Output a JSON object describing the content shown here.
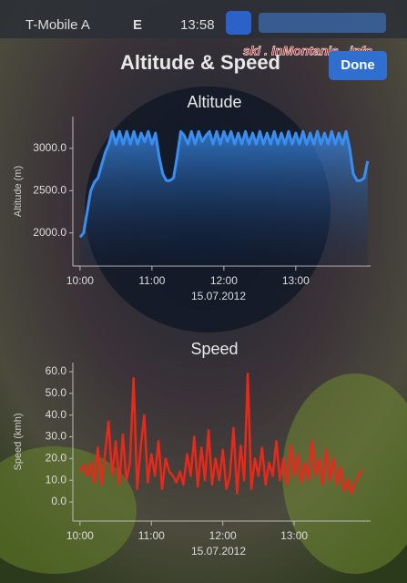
{
  "status_bar": {
    "carrier": "T-Mobile A",
    "network": "E",
    "time": "13:58"
  },
  "nav_bar": {
    "title": "Altitude & Speed",
    "button": "Done"
  },
  "watermark": "ski . inMontanis . info",
  "chart_data": [
    {
      "type": "area",
      "title": "Altitude",
      "y_label": "Altitude (m)",
      "x_label": "15.07.2012",
      "color": "#3a8ef0",
      "x": [
        10.0,
        10.05,
        10.1,
        10.15,
        10.2,
        10.25,
        10.3,
        10.35,
        10.4,
        10.45,
        10.5,
        10.55,
        10.6,
        10.65,
        10.7,
        10.75,
        10.8,
        10.85,
        10.9,
        10.95,
        11.0,
        11.05,
        11.1,
        11.15,
        11.2,
        11.25,
        11.3,
        11.35,
        11.4,
        11.45,
        11.5,
        11.55,
        11.6,
        11.65,
        11.7,
        11.75,
        11.8,
        11.85,
        11.9,
        11.95,
        12.0,
        12.05,
        12.1,
        12.15,
        12.2,
        12.25,
        12.3,
        12.35,
        12.4,
        12.45,
        12.5,
        12.55,
        12.6,
        12.65,
        12.7,
        12.75,
        12.8,
        12.85,
        12.9,
        12.95,
        13.0,
        13.05,
        13.1,
        13.15,
        13.2,
        13.25,
        13.3,
        13.35,
        13.4,
        13.45,
        13.5,
        13.55,
        13.6,
        13.65,
        13.7,
        13.75,
        13.8,
        13.85,
        13.9,
        13.95,
        14.0
      ],
      "values": [
        1950,
        2000,
        2250,
        2500,
        2600,
        2650,
        2800,
        2950,
        3050,
        3200,
        3050,
        3200,
        3050,
        3200,
        3050,
        3200,
        3050,
        3180,
        3080,
        3200,
        3050,
        3180,
        2900,
        2700,
        2620,
        2620,
        2650,
        2900,
        3200,
        3150,
        3050,
        3200,
        3050,
        3200,
        3080,
        3150,
        3200,
        3050,
        3200,
        3050,
        3200,
        3080,
        3200,
        3050,
        3180,
        3050,
        3200,
        3050,
        3180,
        3050,
        3200,
        3050,
        3180,
        3050,
        3200,
        3050,
        3180,
        3050,
        3200,
        3050,
        3180,
        3050,
        3200,
        3050,
        3180,
        3050,
        3200,
        3050,
        3180,
        3050,
        3200,
        3050,
        3180,
        3050,
        3200,
        3000,
        2700,
        2620,
        2620,
        2650,
        2850
      ],
      "xlim": [
        9.9,
        14.04
      ],
      "xticks": [
        {
          "value": 10,
          "label": "10:00"
        },
        {
          "value": 11,
          "label": "11:00"
        },
        {
          "value": 12,
          "label": "12:00"
        },
        {
          "value": 13,
          "label": "13:00"
        }
      ],
      "ylim": [
        1610,
        3375
      ],
      "yticks": [
        {
          "value": 2000,
          "label": "2000.0"
        },
        {
          "value": 2500,
          "label": "2500.0"
        },
        {
          "value": 3000,
          "label": "3000.0"
        }
      ]
    },
    {
      "type": "line",
      "title": "Speed",
      "y_label": "Speed (kmh)",
      "x_label": "15.07.2012",
      "color": "#e8281a",
      "x": [
        10.0,
        10.05,
        10.1,
        10.15,
        10.2,
        10.25,
        10.3,
        10.35,
        10.4,
        10.45,
        10.5,
        10.55,
        10.6,
        10.65,
        10.7,
        10.75,
        10.8,
        10.85,
        10.9,
        10.95,
        11.0,
        11.05,
        11.1,
        11.15,
        11.2,
        11.25,
        11.3,
        11.35,
        11.4,
        11.45,
        11.5,
        11.55,
        11.6,
        11.65,
        11.7,
        11.75,
        11.8,
        11.85,
        11.9,
        11.95,
        12.0,
        12.05,
        12.1,
        12.15,
        12.2,
        12.25,
        12.3,
        12.35,
        12.4,
        12.45,
        12.5,
        12.55,
        12.6,
        12.65,
        12.7,
        12.75,
        12.8,
        12.85,
        12.9,
        12.95,
        13.0,
        13.05,
        13.1,
        13.15,
        13.2,
        13.25,
        13.3,
        13.35,
        13.4,
        13.45,
        13.5,
        13.55,
        13.6,
        13.65,
        13.7,
        13.75,
        13.8,
        13.85,
        13.9,
        13.95
      ],
      "values": [
        14,
        17,
        12,
        18,
        9,
        25,
        8,
        22,
        37,
        12,
        28,
        8,
        31,
        10,
        18,
        57,
        6,
        25,
        40,
        9,
        22,
        12,
        28,
        6,
        20,
        14,
        12,
        9,
        14,
        8,
        22,
        12,
        30,
        7,
        25,
        10,
        33,
        8,
        20,
        10,
        24,
        6,
        12,
        34,
        4,
        26,
        10,
        59,
        6,
        20,
        12,
        25,
        8,
        18,
        12,
        28,
        10,
        20,
        8,
        26,
        12,
        22,
        9,
        18,
        10,
        28,
        12,
        20,
        8,
        24,
        10,
        20,
        8,
        16,
        5,
        10,
        4,
        9,
        12,
        15
      ],
      "xlim": [
        9.9,
        14.07
      ],
      "xticks": [
        {
          "value": 10,
          "label": "10:00"
        },
        {
          "value": 11,
          "label": "11:00"
        },
        {
          "value": 12,
          "label": "12:00"
        },
        {
          "value": 13,
          "label": "13:00"
        }
      ],
      "ylim": [
        -8.8,
        64.2
      ],
      "yticks": [
        {
          "value": 0,
          "label": "0.0"
        },
        {
          "value": 10,
          "label": "10.0"
        },
        {
          "value": 20,
          "label": "20.0"
        },
        {
          "value": 30,
          "label": "30.0"
        },
        {
          "value": 40,
          "label": "40.0"
        },
        {
          "value": 50,
          "label": "50.0"
        },
        {
          "value": 60,
          "label": "60.0"
        }
      ]
    }
  ]
}
